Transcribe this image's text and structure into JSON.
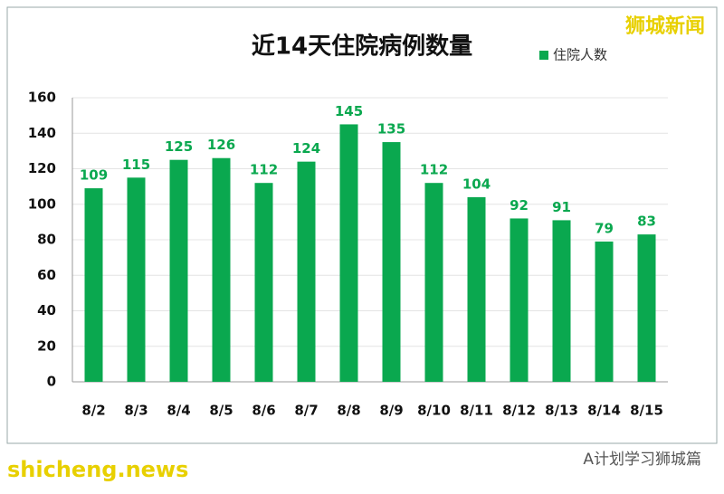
{
  "chart_data": {
    "type": "bar",
    "title": "近14天住院病例数量",
    "categories": [
      "8/2",
      "8/3",
      "8/4",
      "8/5",
      "8/6",
      "8/7",
      "8/8",
      "8/9",
      "8/10",
      "8/11",
      "8/12",
      "8/13",
      "8/14",
      "8/15"
    ],
    "series": [
      {
        "name": "住院人数",
        "color": "#0aa84f",
        "values": [
          109,
          115,
          125,
          126,
          112,
          124,
          145,
          135,
          112,
          104,
          92,
          91,
          79,
          83
        ]
      }
    ],
    "ylim": [
      0,
      160
    ],
    "yticks": [
      0,
      20,
      40,
      60,
      80,
      100,
      120,
      140,
      160
    ],
    "grid": true,
    "legend": "top-right"
  },
  "watermark": "狮城新闻",
  "footer": {
    "site": "shicheng.news",
    "account": "A计划学习狮城篇"
  }
}
